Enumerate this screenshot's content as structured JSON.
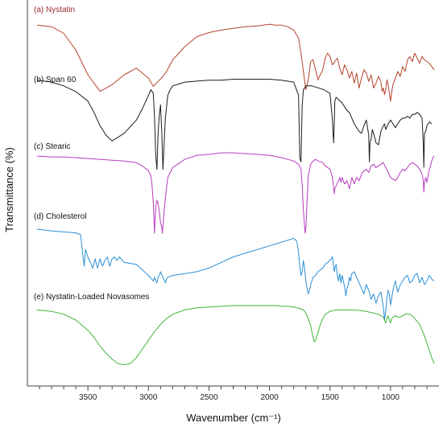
{
  "chart_data": {
    "type": "line",
    "xlabel": "Wavenumber (cm⁻¹)",
    "ylabel": "Transmittance (%)",
    "xlim": [
      4000,
      600
    ],
    "x_reversed": true,
    "x_ticks": [
      "3500",
      "3000",
      "2500",
      "2000",
      "1500",
      "1000"
    ],
    "x_tick_values": [
      3500,
      3000,
      2500,
      2000,
      1500,
      1000
    ],
    "y_ticks_shown": false,
    "grid": false,
    "legend": "inline-labels-top-left-of-each-trace",
    "series": [
      {
        "name": "(a) Nystatin",
        "color": "#b5432c",
        "x": [
          3920,
          3800,
          3700,
          3600,
          3500,
          3400,
          3300,
          3200,
          3100,
          3000,
          2960,
          2920,
          2880,
          2850,
          2800,
          2700,
          2600,
          2500,
          2400,
          2300,
          2200,
          2100,
          2050,
          2000,
          1950,
          1900,
          1850,
          1800,
          1760,
          1740,
          1720,
          1700,
          1680,
          1660,
          1640,
          1620,
          1600,
          1560,
          1540,
          1520,
          1500,
          1480,
          1460,
          1440,
          1420,
          1400,
          1380,
          1360,
          1340,
          1320,
          1300,
          1280,
          1260,
          1240,
          1220,
          1200,
          1180,
          1160,
          1140,
          1120,
          1100,
          1080,
          1070,
          1060,
          1050,
          1040,
          1030,
          1020,
          1010,
          1000,
          990,
          980,
          960,
          940,
          920,
          900,
          880,
          860,
          840,
          820,
          800,
          780,
          760,
          740,
          720,
          700,
          680,
          660,
          640
        ],
        "y": [
          0.06,
          0.08,
          0.16,
          0.36,
          0.66,
          0.86,
          0.78,
          0.66,
          0.58,
          0.7,
          0.8,
          0.74,
          0.68,
          0.62,
          0.48,
          0.32,
          0.2,
          0.15,
          0.12,
          0.1,
          0.08,
          0.07,
          0.06,
          0.05,
          0.06,
          0.06,
          0.08,
          0.12,
          0.22,
          0.4,
          0.62,
          0.84,
          0.72,
          0.5,
          0.48,
          0.6,
          0.72,
          0.6,
          0.46,
          0.4,
          0.44,
          0.54,
          0.5,
          0.46,
          0.58,
          0.66,
          0.54,
          0.6,
          0.7,
          0.62,
          0.76,
          0.64,
          0.82,
          0.7,
          0.6,
          0.64,
          0.74,
          0.66,
          0.82,
          0.76,
          0.68,
          0.74,
          0.86,
          0.82,
          0.9,
          0.84,
          0.72,
          0.78,
          0.88,
          0.98,
          0.86,
          0.78,
          0.7,
          0.62,
          0.68,
          0.56,
          0.62,
          0.48,
          0.44,
          0.5,
          0.4,
          0.46,
          0.52,
          0.44,
          0.48,
          0.5,
          0.52,
          0.56,
          0.6
        ]
      },
      {
        "name": "(b) Span 60",
        "color": "#1c1c1c",
        "x": [
          3920,
          3800,
          3700,
          3600,
          3500,
          3450,
          3400,
          3350,
          3300,
          3200,
          3100,
          3050,
          3000,
          2980,
          2960,
          2950,
          2940,
          2930,
          2920,
          2910,
          2900,
          2890,
          2880,
          2870,
          2860,
          2850,
          2840,
          2820,
          2800,
          2700,
          2600,
          2500,
          2400,
          2300,
          2200,
          2100,
          2000,
          1900,
          1800,
          1760,
          1750,
          1740,
          1735,
          1730,
          1720,
          1700,
          1650,
          1600,
          1550,
          1500,
          1480,
          1470,
          1465,
          1460,
          1450,
          1400,
          1380,
          1360,
          1340,
          1300,
          1260,
          1240,
          1220,
          1200,
          1180,
          1175,
          1170,
          1160,
          1150,
          1140,
          1120,
          1100,
          1080,
          1060,
          1050,
          1040,
          1020,
          1000,
          980,
          960,
          940,
          920,
          900,
          880,
          860,
          840,
          820,
          800,
          780,
          760,
          740,
          730,
          725,
          720,
          710,
          700,
          680,
          660
        ],
        "y": [
          0.04,
          0.06,
          0.1,
          0.16,
          0.26,
          0.38,
          0.52,
          0.62,
          0.68,
          0.6,
          0.46,
          0.34,
          0.2,
          0.14,
          0.18,
          0.42,
          0.82,
          0.98,
          0.6,
          0.4,
          0.3,
          0.58,
          0.98,
          0.7,
          0.44,
          0.32,
          0.2,
          0.14,
          0.1,
          0.06,
          0.05,
          0.04,
          0.04,
          0.03,
          0.03,
          0.03,
          0.03,
          0.04,
          0.06,
          0.2,
          0.86,
          0.9,
          0.6,
          0.3,
          0.14,
          0.1,
          0.1,
          0.12,
          0.14,
          0.18,
          0.46,
          0.7,
          0.5,
          0.26,
          0.22,
          0.28,
          0.32,
          0.36,
          0.38,
          0.5,
          0.58,
          0.6,
          0.52,
          0.46,
          0.62,
          0.9,
          0.7,
          0.66,
          0.56,
          0.6,
          0.7,
          0.72,
          0.58,
          0.52,
          0.5,
          0.56,
          0.5,
          0.46,
          0.5,
          0.54,
          0.5,
          0.46,
          0.44,
          0.44,
          0.42,
          0.44,
          0.4,
          0.4,
          0.38,
          0.4,
          0.44,
          0.7,
          0.96,
          0.6,
          0.58,
          0.52,
          0.48,
          0.5
        ]
      },
      {
        "name": "(c) Stearic",
        "color": "#b73cc0",
        "x": [
          3920,
          3800,
          3700,
          3600,
          3500,
          3400,
          3300,
          3200,
          3100,
          3050,
          3000,
          2980,
          2970,
          2960,
          2955,
          2950,
          2945,
          2940,
          2930,
          2920,
          2910,
          2900,
          2890,
          2885,
          2880,
          2875,
          2870,
          2860,
          2850,
          2840,
          2800,
          2700,
          2600,
          2500,
          2400,
          2300,
          2200,
          2100,
          2000,
          1900,
          1800,
          1760,
          1740,
          1730,
          1720,
          1710,
          1705,
          1700,
          1695,
          1690,
          1680,
          1660,
          1640,
          1620,
          1600,
          1560,
          1540,
          1500,
          1480,
          1470,
          1465,
          1460,
          1450,
          1430,
          1420,
          1410,
          1400,
          1380,
          1360,
          1340,
          1320,
          1300,
          1280,
          1260,
          1240,
          1220,
          1200,
          1180,
          1160,
          1140,
          1120,
          1100,
          1080,
          1060,
          1040,
          1020,
          1000,
          960,
          940,
          920,
          900,
          880,
          860,
          840,
          820,
          800,
          780,
          760,
          740,
          730,
          725,
          720,
          710,
          700,
          690,
          680,
          670,
          660,
          650,
          640
        ],
        "y": [
          0.04,
          0.05,
          0.05,
          0.06,
          0.07,
          0.08,
          0.09,
          0.1,
          0.12,
          0.16,
          0.22,
          0.28,
          0.4,
          0.6,
          0.8,
          0.98,
          0.8,
          0.66,
          0.58,
          0.62,
          0.72,
          0.86,
          0.9,
          0.98,
          0.88,
          0.8,
          0.7,
          0.56,
          0.42,
          0.3,
          0.18,
          0.08,
          0.03,
          0.02,
          0.0,
          0.0,
          0.01,
          0.02,
          0.03,
          0.06,
          0.1,
          0.14,
          0.2,
          0.4,
          0.7,
          0.9,
          0.98,
          0.92,
          0.8,
          0.6,
          0.28,
          0.14,
          0.1,
          0.08,
          0.1,
          0.12,
          0.16,
          0.2,
          0.3,
          0.42,
          0.5,
          0.44,
          0.4,
          0.34,
          0.3,
          0.36,
          0.3,
          0.38,
          0.34,
          0.44,
          0.3,
          0.38,
          0.3,
          0.34,
          0.26,
          0.22,
          0.2,
          0.24,
          0.16,
          0.14,
          0.18,
          0.16,
          0.14,
          0.12,
          0.18,
          0.24,
          0.3,
          0.34,
          0.3,
          0.24,
          0.2,
          0.22,
          0.18,
          0.14,
          0.12,
          0.14,
          0.16,
          0.2,
          0.26,
          0.34,
          0.48,
          0.36,
          0.3,
          0.36,
          0.28,
          0.2,
          0.16,
          0.1,
          0.06,
          0.04
        ]
      },
      {
        "name": "(d) Cholesterol",
        "color": "#2b8fd6",
        "x": [
          3920,
          3800,
          3700,
          3600,
          3560,
          3540,
          3530,
          3520,
          3500,
          3460,
          3440,
          3430,
          3420,
          3400,
          3380,
          3360,
          3340,
          3320,
          3300,
          3280,
          3260,
          3240,
          3200,
          3100,
          3050,
          3000,
          2960,
          2950,
          2940,
          2930,
          2920,
          2910,
          2900,
          2880,
          2860,
          2850,
          2840,
          2800,
          2700,
          2600,
          2500,
          2400,
          2300,
          2200,
          2150,
          2100,
          2050,
          2000,
          1950,
          1900,
          1850,
          1800,
          1780,
          1770,
          1760,
          1750,
          1740,
          1730,
          1720,
          1710,
          1700,
          1690,
          1680,
          1670,
          1660,
          1650,
          1640,
          1620,
          1600,
          1560,
          1540,
          1500,
          1480,
          1470,
          1465,
          1460,
          1450,
          1440,
          1430,
          1420,
          1410,
          1400,
          1380,
          1370,
          1360,
          1350,
          1340,
          1330,
          1320,
          1300,
          1280,
          1260,
          1240,
          1220,
          1200,
          1180,
          1160,
          1140,
          1120,
          1100,
          1080,
          1060,
          1055,
          1050,
          1040,
          1030,
          1020,
          1010,
          1000,
          990,
          980,
          970,
          960,
          950,
          940,
          920,
          900,
          880,
          860,
          840,
          820,
          800,
          780,
          760,
          740,
          720,
          700,
          680,
          660,
          640
        ],
        "y": [
          0.0,
          0.02,
          0.03,
          0.04,
          0.06,
          0.3,
          0.4,
          0.22,
          0.3,
          0.42,
          0.32,
          0.38,
          0.42,
          0.32,
          0.4,
          0.34,
          0.3,
          0.4,
          0.32,
          0.3,
          0.34,
          0.3,
          0.36,
          0.38,
          0.44,
          0.5,
          0.56,
          0.52,
          0.56,
          0.58,
          0.52,
          0.5,
          0.46,
          0.52,
          0.58,
          0.54,
          0.52,
          0.5,
          0.48,
          0.46,
          0.42,
          0.36,
          0.3,
          0.26,
          0.24,
          0.22,
          0.2,
          0.18,
          0.16,
          0.14,
          0.12,
          0.1,
          0.12,
          0.16,
          0.26,
          0.4,
          0.5,
          0.46,
          0.34,
          0.42,
          0.56,
          0.64,
          0.7,
          0.66,
          0.6,
          0.56,
          0.52,
          0.5,
          0.46,
          0.42,
          0.38,
          0.34,
          0.3,
          0.4,
          0.46,
          0.42,
          0.38,
          0.5,
          0.56,
          0.48,
          0.58,
          0.5,
          0.62,
          0.72,
          0.64,
          0.6,
          0.52,
          0.56,
          0.48,
          0.46,
          0.52,
          0.58,
          0.64,
          0.7,
          0.6,
          0.66,
          0.76,
          0.7,
          0.8,
          0.72,
          0.68,
          0.84,
          0.9,
          0.98,
          0.88,
          0.74,
          0.66,
          0.7,
          0.82,
          0.74,
          0.66,
          0.6,
          0.56,
          0.62,
          0.68,
          0.6,
          0.56,
          0.52,
          0.5,
          0.58,
          0.56,
          0.5,
          0.48,
          0.58,
          0.52,
          0.6,
          0.56,
          0.5,
          0.54,
          0.56
        ]
      },
      {
        "name": "(e) Nystatin-Loaded Novasomes",
        "color": "#3fb53a",
        "x": [
          3920,
          3800,
          3700,
          3600,
          3500,
          3450,
          3400,
          3350,
          3300,
          3250,
          3200,
          3150,
          3100,
          3050,
          3000,
          2950,
          2900,
          2850,
          2800,
          2700,
          2600,
          2500,
          2400,
          2300,
          2200,
          2150,
          2120,
          2100,
          2050,
          2000,
          1980,
          1950,
          1900,
          1850,
          1800,
          1750,
          1720,
          1700,
          1680,
          1660,
          1650,
          1640,
          1630,
          1620,
          1600,
          1580,
          1560,
          1540,
          1500,
          1450,
          1400,
          1350,
          1300,
          1250,
          1200,
          1150,
          1100,
          1080,
          1060,
          1050,
          1040,
          1030,
          1020,
          1010,
          1000,
          990,
          980,
          960,
          940,
          920,
          900,
          880,
          860,
          840,
          820,
          800,
          780,
          760,
          740,
          720,
          700,
          680,
          660,
          640
        ],
        "y": [
          0.06,
          0.08,
          0.12,
          0.2,
          0.34,
          0.44,
          0.56,
          0.66,
          0.74,
          0.8,
          0.82,
          0.8,
          0.72,
          0.6,
          0.48,
          0.36,
          0.26,
          0.18,
          0.12,
          0.06,
          0.03,
          0.02,
          0.01,
          0.0,
          0.0,
          0.0,
          0.0,
          0.0,
          0.0,
          0.0,
          0.0,
          0.0,
          0.01,
          0.01,
          0.02,
          0.04,
          0.06,
          0.1,
          0.18,
          0.28,
          0.36,
          0.44,
          0.5,
          0.48,
          0.38,
          0.26,
          0.18,
          0.12,
          0.08,
          0.06,
          0.06,
          0.06,
          0.06,
          0.07,
          0.08,
          0.1,
          0.12,
          0.14,
          0.16,
          0.2,
          0.24,
          0.18,
          0.14,
          0.2,
          0.24,
          0.18,
          0.16,
          0.14,
          0.16,
          0.16,
          0.14,
          0.12,
          0.12,
          0.12,
          0.14,
          0.18,
          0.22,
          0.26,
          0.34,
          0.42,
          0.52,
          0.62,
          0.72,
          0.8
        ]
      }
    ]
  }
}
